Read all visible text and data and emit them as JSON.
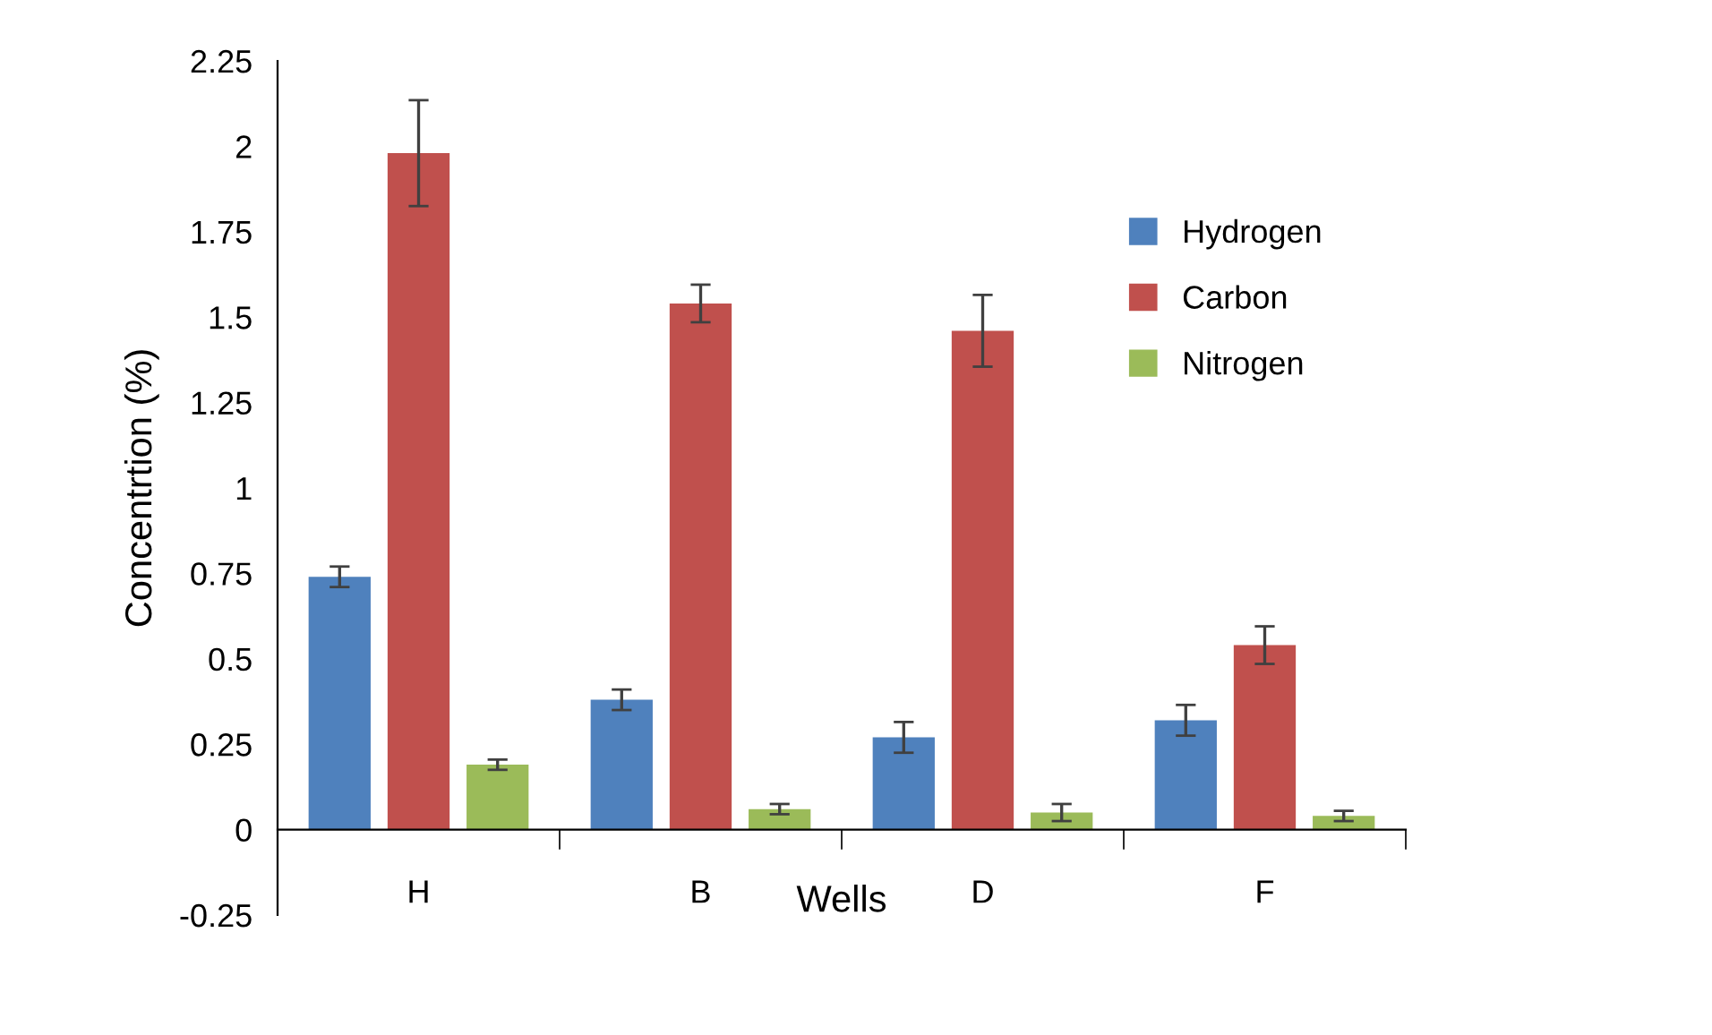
{
  "chart_data": {
    "type": "bar",
    "xlabel": "Wells",
    "ylabel": "Concentrtion (%)",
    "categories": [
      "H",
      "B",
      "D",
      "F"
    ],
    "series": [
      {
        "name": "Hydrogen",
        "color": "#4f81bd",
        "values": [
          0.74,
          0.38,
          0.27,
          0.32
        ],
        "errors": [
          0.03,
          0.03,
          0.045,
          0.045
        ]
      },
      {
        "name": "Carbon",
        "color": "#c0504d",
        "values": [
          1.98,
          1.54,
          1.46,
          0.54
        ],
        "errors": [
          0.155,
          0.055,
          0.105,
          0.055
        ]
      },
      {
        "name": "Nitrogen",
        "color": "#9bbb59",
        "values": [
          0.19,
          0.06,
          0.05,
          0.04
        ],
        "errors": [
          0.015,
          0.015,
          0.025,
          0.015
        ]
      }
    ],
    "ylim": [
      -0.25,
      2.25
    ],
    "yticks": [
      -0.25,
      0,
      0.25,
      0.5,
      0.75,
      1,
      1.25,
      1.5,
      1.75,
      2,
      2.25
    ],
    "grid": false,
    "legend": "right"
  }
}
